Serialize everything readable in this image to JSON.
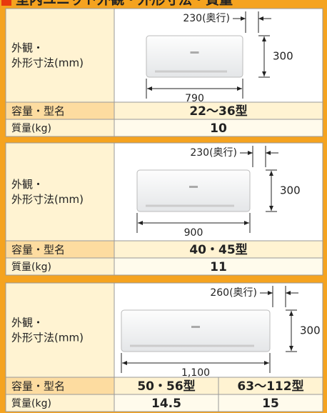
{
  "title": "室内ユニット外観・外形寸法・質量",
  "sections": [
    {
      "appearance_label": [
        "外観・",
        "外形寸法(mm)"
      ],
      "depth": "230(奥行)",
      "height": "300",
      "width": "790",
      "capacity_label": "容量・型名",
      "capacity": [
        "22〜36型"
      ],
      "weight_label": "質量(kg)",
      "weight": [
        "10"
      ]
    },
    {
      "appearance_label": [
        "外観・",
        "外形寸法(mm)"
      ],
      "depth": "230(奥行)",
      "height": "300",
      "width": "900",
      "capacity_label": "容量・型名",
      "capacity": [
        "40・45型"
      ],
      "weight_label": "質量(kg)",
      "weight": [
        "11"
      ]
    },
    {
      "appearance_label": [
        "外観・",
        "外形寸法(mm)"
      ],
      "depth": "260(奥行)",
      "height": "300",
      "width": "1,100",
      "capacity_label": "容量・型名",
      "capacity": [
        "50・56型",
        "63〜112型"
      ],
      "weight_label": "質量(kg)",
      "weight": [
        "14.5",
        "15"
      ]
    }
  ]
}
